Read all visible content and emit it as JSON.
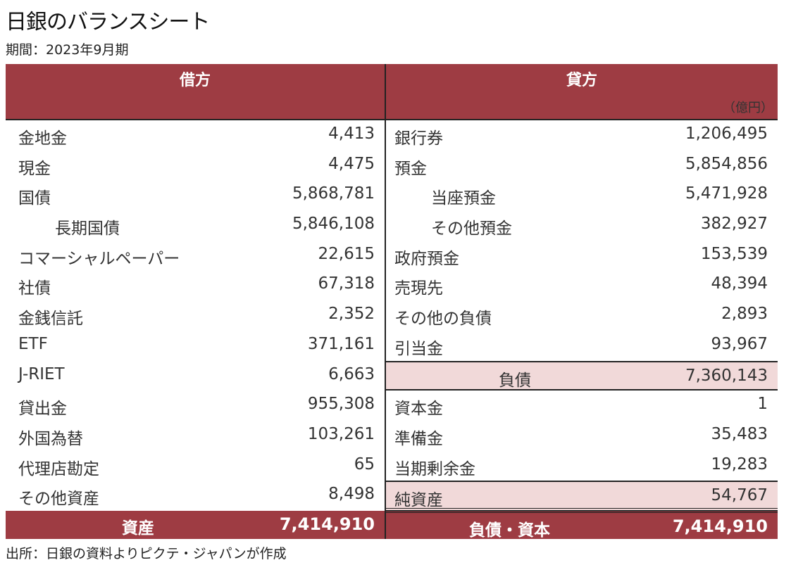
{
  "title": "日銀のバランスシート",
  "period": "期間：2023年9月期",
  "source": "出所：日銀の資料よりピクテ・ジャパンが作成",
  "colors": {
    "header_bg": "#9e3c43",
    "subtotal_bg": "#f1d9d9"
  },
  "debit": {
    "header": "借方",
    "rows": [
      {
        "label": "金地金",
        "value": "4,413"
      },
      {
        "label": "現金",
        "value": "4,475"
      },
      {
        "label": "国債",
        "value": "5,868,781"
      },
      {
        "label": "長期国債",
        "value": "5,846,108"
      },
      {
        "label": "コマーシャルペーパー",
        "value": "22,615"
      },
      {
        "label": "社債",
        "value": "67,318"
      },
      {
        "label": "金銭信託",
        "value": "2,352"
      },
      {
        "label": "ETF",
        "value": "371,161"
      },
      {
        "label": "J-RIET",
        "value": "6,663"
      },
      {
        "label": "貸出金",
        "value": "955,308"
      },
      {
        "label": "外国為替",
        "value": "103,261"
      },
      {
        "label": "代理店勘定",
        "value": "65"
      },
      {
        "label": "その他資産",
        "value": "8,498"
      }
    ],
    "total_label": "資産",
    "total_value": "7,414,910"
  },
  "credit": {
    "header": "貸方",
    "unit": "（億円）",
    "rows": [
      {
        "label": "銀行券",
        "value": "1,206,495"
      },
      {
        "label": "預金",
        "value": "5,854,856"
      },
      {
        "label": "当座預金",
        "value": "5,471,928"
      },
      {
        "label": "その他預金",
        "value": "382,927"
      },
      {
        "label": "政府預金",
        "value": "153,539"
      },
      {
        "label": "売現先",
        "value": "48,394"
      },
      {
        "label": "その他の負債",
        "value": "2,893"
      },
      {
        "label": "引当金",
        "value": "93,967"
      },
      {
        "label": "負債",
        "value": "7,360,143"
      },
      {
        "label": "資本金",
        "value": "1"
      },
      {
        "label": "準備金",
        "value": "35,483"
      },
      {
        "label": "当期剰余金",
        "value": "19,283"
      },
      {
        "label": "純資産",
        "value": "54,767"
      }
    ],
    "total_label": "負債・資本",
    "total_value": "7,414,910"
  }
}
